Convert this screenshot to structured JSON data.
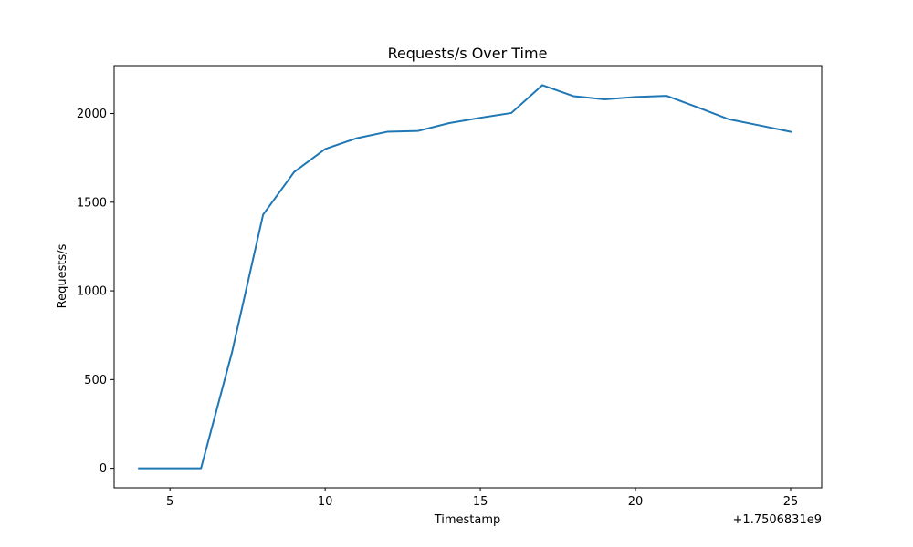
{
  "chart_data": {
    "type": "line",
    "title": "Requests/s Over Time",
    "xlabel": "Timestamp",
    "ylabel": "Requests/s",
    "x_offset_label": "+1.7506831e9",
    "xlim": [
      3.2,
      26.0
    ],
    "ylim": [
      -110,
      2270
    ],
    "x_ticks": [
      5,
      10,
      15,
      20,
      25
    ],
    "x_tick_labels": [
      "5",
      "10",
      "15",
      "20",
      "25"
    ],
    "y_ticks": [
      0,
      500,
      1000,
      1500,
      2000
    ],
    "y_tick_labels": [
      "0",
      "500",
      "1000",
      "1500",
      "2000"
    ],
    "grid": false,
    "series": [
      {
        "color": "#1f77b4",
        "x": [
          4,
          5,
          6,
          7,
          8,
          9,
          10,
          11,
          12,
          13,
          14,
          15,
          16,
          17,
          18,
          19,
          20,
          21,
          22,
          23,
          24,
          25
        ],
        "y": [
          0,
          0,
          0,
          655,
          1430,
          1670,
          1800,
          1860,
          1897,
          1902,
          1946,
          1976,
          2003,
          2160,
          2098,
          2080,
          2093,
          2100,
          2035,
          1968,
          1933,
          1897
        ]
      }
    ]
  }
}
